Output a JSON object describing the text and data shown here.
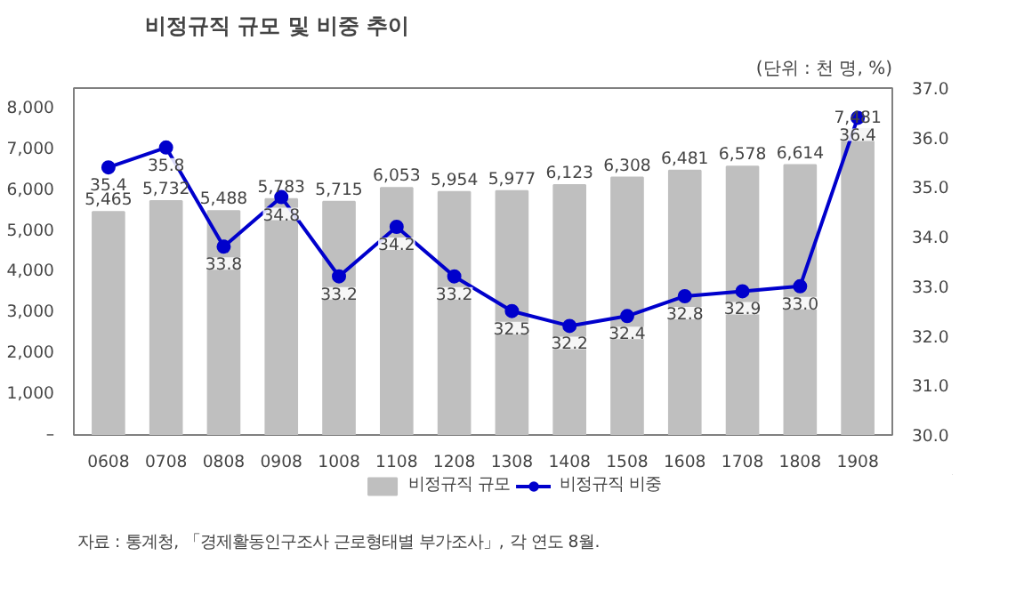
{
  "chart_data": {
    "type": "bar",
    "title": "비정규직 규모 및 비중 추이",
    "subtitle": "(단위 : 천 명, %)",
    "categories": [
      "0608",
      "0708",
      "0808",
      "0908",
      "1008",
      "1108",
      "1208",
      "1308",
      "1408",
      "1508",
      "1608",
      "1708",
      "1808",
      "1908"
    ],
    "series": [
      {
        "name": "비정규직 규모",
        "type": "bar",
        "color": "#bfbfbf",
        "values": [
          5465,
          5732,
          5488,
          5783,
          5715,
          6053,
          5954,
          5977,
          6123,
          6308,
          6481,
          6578,
          6614,
          7481
        ],
        "value_labels": [
          "5,465",
          "5,732",
          "5,488",
          "5,783",
          "5,715",
          "6,053",
          "5,954",
          "5,977",
          "6,123",
          "6,308",
          "6,481",
          "6,578",
          "6,614",
          "7,481"
        ]
      },
      {
        "name": "비정규직 비중",
        "type": "line",
        "axis": "y2",
        "color": "#0000cc",
        "marker": "circle",
        "values": [
          35.4,
          35.8,
          33.8,
          34.8,
          33.2,
          34.2,
          33.2,
          32.5,
          32.2,
          32.4,
          32.8,
          32.9,
          33.0,
          36.4
        ],
        "value_labels": [
          "35.4",
          "35.8",
          "33.8",
          "34.8",
          "33.2",
          "34.2",
          "33.2",
          "32.5",
          "32.2",
          "32.4",
          "32.8",
          "32.9",
          "33.0",
          "36.4"
        ]
      }
    ],
    "ylim": [
      0,
      8500
    ],
    "yticks": [
      {
        "value": 0,
        "label": "–"
      },
      {
        "value": 1000,
        "label": "1,000"
      },
      {
        "value": 2000,
        "label": "2,000"
      },
      {
        "value": 3000,
        "label": "3,000"
      },
      {
        "value": 4000,
        "label": "4,000"
      },
      {
        "value": 5000,
        "label": "5,000"
      },
      {
        "value": 6000,
        "label": "6,000"
      },
      {
        "value": 7000,
        "label": "7,000"
      },
      {
        "value": 8000,
        "label": "8,000"
      }
    ],
    "y2lim": [
      30,
      37
    ],
    "y2ticks": [
      "30.0",
      "31.0",
      "32.0",
      "33.0",
      "34.0",
      "35.0",
      "36.0",
      "37.0"
    ],
    "grid": false,
    "legend": "bottom",
    "annotations": [
      "자료 : 통계청, 「경제활동인구조사 근로형태별 부가조사」, 각 연도 8월."
    ]
  }
}
